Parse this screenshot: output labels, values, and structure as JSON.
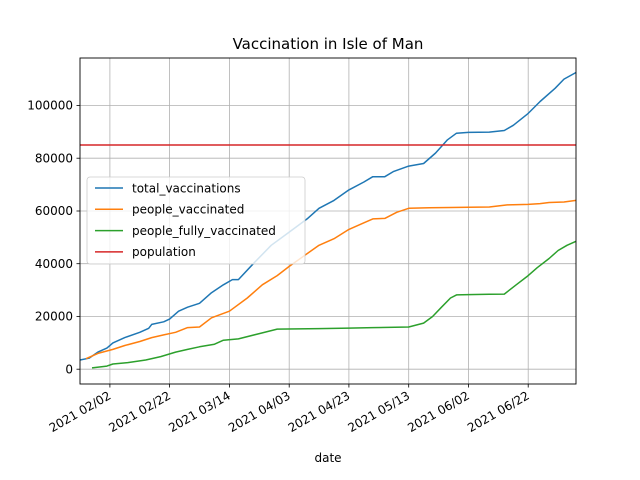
{
  "chart_data": {
    "type": "line",
    "title": "Vaccination in Isle of Man",
    "xlabel": "date",
    "ylabel": "",
    "x_tick_labels": [
      "2021 02/02",
      "2021 02/22",
      "2021 03/14",
      "2021 04/03",
      "2021 04/23",
      "2021 05/13",
      "2021 06/02",
      "2021 06/22"
    ],
    "x_tick_dates": [
      "2021-02-02",
      "2021-02-22",
      "2021-03-14",
      "2021-04-03",
      "2021-04-23",
      "2021-05-13",
      "2021-06-02",
      "2021-06-22"
    ],
    "x_range": [
      "2021-01-23",
      "2021-07-08"
    ],
    "y_ticks": [
      0,
      20000,
      40000,
      60000,
      80000,
      100000
    ],
    "y_tick_labels": [
      "0",
      "20000",
      "40000",
      "60000",
      "80000",
      "100000"
    ],
    "ylim": [
      -5600,
      118000
    ],
    "grid": true,
    "legend_position": "center-left",
    "series": [
      {
        "name": "total_vaccinations",
        "color": "#1f77b4",
        "points": [
          [
            "2021-01-23",
            3500
          ],
          [
            "2021-01-26",
            4200
          ],
          [
            "2021-01-29",
            6500
          ],
          [
            "2021-02-01",
            8000
          ],
          [
            "2021-02-03",
            10000
          ],
          [
            "2021-02-07",
            12000
          ],
          [
            "2021-02-12",
            14000
          ],
          [
            "2021-02-15",
            15500
          ],
          [
            "2021-02-16",
            17000
          ],
          [
            "2021-02-20",
            18000
          ],
          [
            "2021-02-22",
            19000
          ],
          [
            "2021-02-25",
            22000
          ],
          [
            "2021-02-28",
            23500
          ],
          [
            "2021-03-04",
            25000
          ],
          [
            "2021-03-08",
            29000
          ],
          [
            "2021-03-12",
            32000
          ],
          [
            "2021-03-15",
            34000
          ],
          [
            "2021-03-17",
            34000
          ],
          [
            "2021-03-22",
            40000
          ],
          [
            "2021-03-28",
            47000
          ],
          [
            "2021-04-03",
            52000
          ],
          [
            "2021-04-09",
            57000
          ],
          [
            "2021-04-13",
            61000
          ],
          [
            "2021-04-18",
            64000
          ],
          [
            "2021-04-23",
            68000
          ],
          [
            "2021-04-28",
            71000
          ],
          [
            "2021-05-01",
            73000
          ],
          [
            "2021-05-05",
            73000
          ],
          [
            "2021-05-08",
            75000
          ],
          [
            "2021-05-13",
            77000
          ],
          [
            "2021-05-18",
            78000
          ],
          [
            "2021-05-22",
            82000
          ],
          [
            "2021-05-26",
            87000
          ],
          [
            "2021-05-29",
            89500
          ],
          [
            "2021-06-02",
            89800
          ],
          [
            "2021-06-09",
            89900
          ],
          [
            "2021-06-14",
            90500
          ],
          [
            "2021-06-17",
            92500
          ],
          [
            "2021-06-22",
            97000
          ],
          [
            "2021-06-26",
            101500
          ],
          [
            "2021-07-01",
            106500
          ],
          [
            "2021-07-04",
            110000
          ],
          [
            "2021-07-08",
            112500
          ]
        ]
      },
      {
        "name": "people_vaccinated",
        "color": "#ff7f0e",
        "points": [
          [
            "2021-01-25",
            4000
          ],
          [
            "2021-01-29",
            6000
          ],
          [
            "2021-02-03",
            7500
          ],
          [
            "2021-02-07",
            9000
          ],
          [
            "2021-02-12",
            10500
          ],
          [
            "2021-02-16",
            12000
          ],
          [
            "2021-02-20",
            13000
          ],
          [
            "2021-02-24",
            14000
          ],
          [
            "2021-02-28",
            15800
          ],
          [
            "2021-03-04",
            16000
          ],
          [
            "2021-03-08",
            19500
          ],
          [
            "2021-03-14",
            22000
          ],
          [
            "2021-03-20",
            27000
          ],
          [
            "2021-03-25",
            32000
          ],
          [
            "2021-03-30",
            35500
          ],
          [
            "2021-04-03",
            39000
          ],
          [
            "2021-04-08",
            43000
          ],
          [
            "2021-04-13",
            47000
          ],
          [
            "2021-04-18",
            49500
          ],
          [
            "2021-04-23",
            53000
          ],
          [
            "2021-04-28",
            55500
          ],
          [
            "2021-05-01",
            57000
          ],
          [
            "2021-05-05",
            57200
          ],
          [
            "2021-05-09",
            59500
          ],
          [
            "2021-05-13",
            61000
          ],
          [
            "2021-05-20",
            61200
          ],
          [
            "2021-05-27",
            61300
          ],
          [
            "2021-06-02",
            61400
          ],
          [
            "2021-06-09",
            61500
          ],
          [
            "2021-06-15",
            62300
          ],
          [
            "2021-06-22",
            62500
          ],
          [
            "2021-06-26",
            62800
          ],
          [
            "2021-06-29",
            63200
          ],
          [
            "2021-07-04",
            63400
          ],
          [
            "2021-07-08",
            64000
          ]
        ]
      },
      {
        "name": "people_fully_vaccinated",
        "color": "#2ca02c",
        "points": [
          [
            "2021-01-27",
            500
          ],
          [
            "2021-02-01",
            1200
          ],
          [
            "2021-02-03",
            2000
          ],
          [
            "2021-02-08",
            2500
          ],
          [
            "2021-02-14",
            3500
          ],
          [
            "2021-02-19",
            4800
          ],
          [
            "2021-02-24",
            6500
          ],
          [
            "2021-02-28",
            7500
          ],
          [
            "2021-03-04",
            8500
          ],
          [
            "2021-03-09",
            9500
          ],
          [
            "2021-03-12",
            11000
          ],
          [
            "2021-03-17",
            11500
          ],
          [
            "2021-03-24",
            13500
          ],
          [
            "2021-03-30",
            15200
          ],
          [
            "2021-04-13",
            15400
          ],
          [
            "2021-04-23",
            15600
          ],
          [
            "2021-05-01",
            15800
          ],
          [
            "2021-05-13",
            16000
          ],
          [
            "2021-05-18",
            17500
          ],
          [
            "2021-05-21",
            20000
          ],
          [
            "2021-05-24",
            23500
          ],
          [
            "2021-05-27",
            27000
          ],
          [
            "2021-05-29",
            28200
          ],
          [
            "2021-06-02",
            28300
          ],
          [
            "2021-06-09",
            28400
          ],
          [
            "2021-06-14",
            28500
          ],
          [
            "2021-06-18",
            32000
          ],
          [
            "2021-06-22",
            35500
          ],
          [
            "2021-06-25",
            38500
          ],
          [
            "2021-06-29",
            42000
          ],
          [
            "2021-07-02",
            45000
          ],
          [
            "2021-07-05",
            47000
          ],
          [
            "2021-07-08",
            48500
          ]
        ]
      },
      {
        "name": "population",
        "color": "#d62728",
        "points": [
          [
            "2021-01-23",
            85000
          ],
          [
            "2021-07-08",
            85000
          ]
        ]
      }
    ]
  }
}
